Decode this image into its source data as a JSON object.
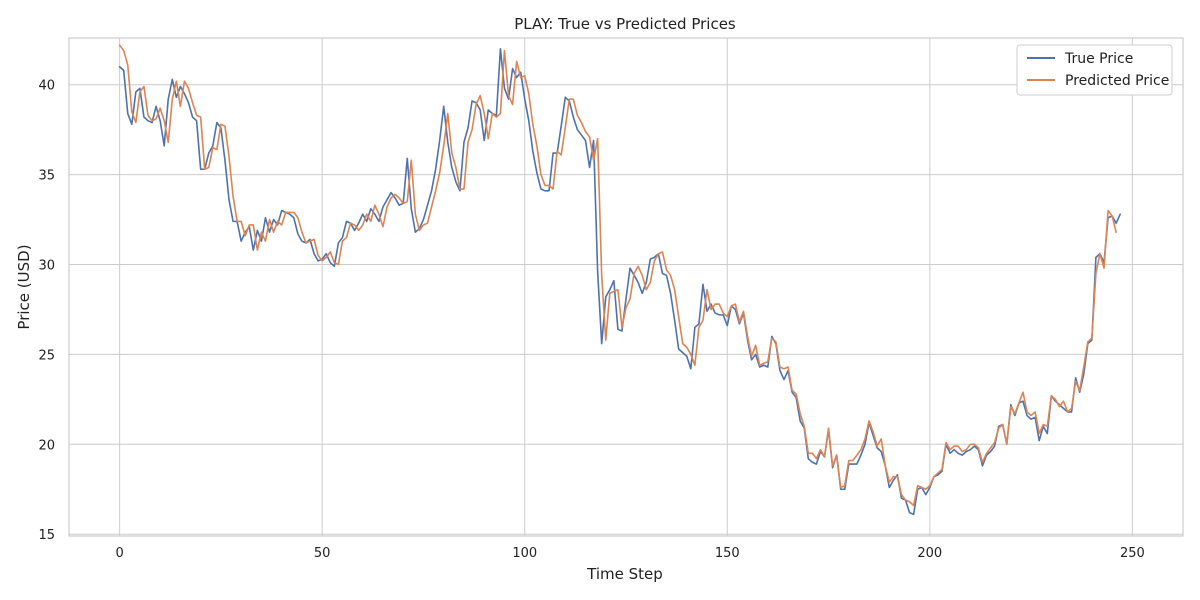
{
  "chart_data": {
    "type": "line",
    "title": "PLAY: True vs Predicted Prices",
    "xlabel": "Time Step",
    "ylabel": "Price (USD)",
    "xlim": [
      -12.5,
      262.5
    ],
    "ylim": [
      14.9,
      42.6
    ],
    "xticks": [
      0,
      50,
      100,
      150,
      200,
      250
    ],
    "yticks": [
      15,
      20,
      25,
      30,
      35,
      40
    ],
    "grid": true,
    "legend_position": "top-right",
    "series": [
      {
        "name": "True Price",
        "color": "#4c72b0",
        "values": [
          41.0,
          40.8,
          38.4,
          37.8,
          39.6,
          39.8,
          38.2,
          38.0,
          37.9,
          38.8,
          38.0,
          36.6,
          39.2,
          40.3,
          39.3,
          39.9,
          39.5,
          39.0,
          38.2,
          38.0,
          35.3,
          35.3,
          36.2,
          36.6,
          37.9,
          37.6,
          35.8,
          33.6,
          32.4,
          32.4,
          31.3,
          31.8,
          32.1,
          30.8,
          31.9,
          31.3,
          32.6,
          31.8,
          32.5,
          32.2,
          33.0,
          32.9,
          32.8,
          32.6,
          31.7,
          31.3,
          31.2,
          31.4,
          30.6,
          30.2,
          30.3,
          30.6,
          30.1,
          29.9,
          31.2,
          31.5,
          32.4,
          32.3,
          31.9,
          32.3,
          32.8,
          32.4,
          33.1,
          32.8,
          32.4,
          33.2,
          33.6,
          34.0,
          33.7,
          33.3,
          33.4,
          35.9,
          33.1,
          31.8,
          32.0,
          32.5,
          33.3,
          34.1,
          35.3,
          36.9,
          38.8,
          36.8,
          35.4,
          34.6,
          34.1,
          36.8,
          37.6,
          39.1,
          39.0,
          38.6,
          36.9,
          38.6,
          38.4,
          38.3,
          42.0,
          39.8,
          39.2,
          40.9,
          40.4,
          40.7,
          39.2,
          38.0,
          36.3,
          35.1,
          34.2,
          34.1,
          34.1,
          36.2,
          36.2,
          37.7,
          39.3,
          39.1,
          38.2,
          37.5,
          37.2,
          36.9,
          35.4,
          36.9,
          29.6,
          25.6,
          28.2,
          28.6,
          29.1,
          26.4,
          26.3,
          28.1,
          29.8,
          29.4,
          29.0,
          28.4,
          29.0,
          30.3,
          30.4,
          30.6,
          29.5,
          29.4,
          28.4,
          26.9,
          25.3,
          25.1,
          24.9,
          24.2,
          26.5,
          26.7,
          28.9,
          27.4,
          27.8,
          27.3,
          27.2,
          27.2,
          26.6,
          27.7,
          27.5,
          26.7,
          27.3,
          25.8,
          24.7,
          25.0,
          24.3,
          24.4,
          24.3,
          26.0,
          25.6,
          24.1,
          23.6,
          24.1,
          22.9,
          22.6,
          21.3,
          20.9,
          19.2,
          19.0,
          18.9,
          19.6,
          19.3,
          20.8,
          18.7,
          19.4,
          17.5,
          17.5,
          18.9,
          18.9,
          18.9,
          19.4,
          20.0,
          21.2,
          20.5,
          19.8,
          19.6,
          18.8,
          17.6,
          18.0,
          18.3,
          17.0,
          16.9,
          16.2,
          16.1,
          17.5,
          17.6,
          17.2,
          17.6,
          18.2,
          18.3,
          18.5,
          20.0,
          19.5,
          19.7,
          19.5,
          19.4,
          19.6,
          19.7,
          19.9,
          19.7,
          18.8,
          19.4,
          19.6,
          19.9,
          21.0,
          21.1,
          20.0,
          22.2,
          21.6,
          22.3,
          22.4,
          21.6,
          21.4,
          21.5,
          20.2,
          21.0,
          20.6,
          22.7,
          22.4,
          22.2,
          22.0,
          21.8,
          21.8,
          23.7,
          22.9,
          23.9,
          25.6,
          25.8,
          30.4,
          30.6,
          30.1,
          32.6,
          32.7,
          32.3,
          32.8
        ]
      },
      {
        "name": "Predicted Price",
        "color": "#dd8452",
        "values": [
          42.2,
          41.9,
          41.1,
          38.5,
          37.9,
          39.6,
          39.9,
          38.3,
          38.0,
          38.1,
          38.7,
          38.0,
          36.8,
          39.2,
          40.2,
          38.8,
          40.2,
          39.8,
          39.0,
          38.3,
          38.2,
          35.3,
          35.4,
          36.5,
          36.4,
          37.8,
          37.7,
          36.0,
          33.8,
          32.4,
          32.4,
          31.6,
          32.2,
          32.2,
          30.8,
          31.8,
          31.3,
          32.5,
          31.8,
          32.4,
          32.2,
          32.9,
          32.9,
          32.9,
          32.6,
          31.8,
          31.2,
          31.3,
          31.4,
          30.5,
          30.2,
          30.4,
          30.7,
          30.1,
          30.0,
          31.3,
          31.5,
          32.3,
          32.2,
          31.9,
          32.2,
          32.8,
          32.4,
          33.3,
          32.8,
          32.1,
          33.2,
          33.7,
          33.9,
          33.7,
          33.4,
          33.5,
          35.8,
          32.8,
          31.9,
          32.2,
          32.3,
          33.2,
          34.1,
          35.1,
          36.6,
          38.4,
          36.2,
          35.4,
          34.2,
          34.2,
          36.8,
          37.5,
          38.9,
          39.4,
          38.4,
          37.0,
          38.4,
          38.2,
          38.4,
          41.9,
          39.4,
          38.9,
          41.3,
          40.4,
          40.5,
          39.5,
          37.8,
          36.6,
          35.0,
          34.4,
          34.4,
          34.2,
          36.3,
          36.1,
          37.6,
          39.2,
          39.2,
          38.3,
          37.9,
          37.4,
          37.1,
          35.8,
          37.0,
          29.4,
          25.8,
          28.4,
          28.5,
          28.6,
          26.5,
          27.6,
          28.1,
          29.5,
          29.9,
          29.4,
          28.6,
          29.0,
          30.2,
          30.6,
          30.7,
          29.7,
          29.4,
          28.6,
          27.1,
          25.6,
          25.4,
          25.0,
          24.4,
          26.5,
          26.9,
          28.6,
          27.5,
          27.8,
          27.8,
          27.3,
          27.1,
          27.7,
          27.8,
          26.8,
          27.4,
          26.0,
          24.9,
          25.5,
          24.4,
          24.5,
          24.6,
          25.9,
          25.7,
          24.3,
          24.2,
          24.3,
          23.0,
          22.8,
          21.7,
          21.0,
          19.5,
          19.5,
          19.2,
          19.7,
          19.3,
          20.9,
          18.8,
          19.4,
          17.6,
          17.7,
          19.1,
          19.1,
          19.4,
          19.7,
          20.3,
          21.3,
          20.7,
          19.9,
          20.3,
          18.8,
          17.9,
          18.2,
          18.2,
          17.2,
          16.9,
          16.8,
          16.6,
          17.7,
          17.6,
          17.5,
          17.7,
          18.2,
          18.4,
          18.6,
          20.1,
          19.7,
          19.9,
          19.9,
          19.6,
          19.7,
          20.0,
          20.0,
          19.8,
          19.0,
          19.5,
          19.8,
          20.1,
          20.9,
          21.1,
          20.0,
          22.1,
          21.7,
          22.3,
          22.9,
          21.8,
          21.6,
          21.8,
          20.6,
          21.1,
          21.0,
          22.7,
          22.5,
          22.1,
          22.4,
          21.8,
          22.0,
          23.5,
          23.0,
          24.3,
          25.7,
          25.9,
          29.5,
          30.6,
          29.8,
          33.0,
          32.7,
          31.8
        ]
      }
    ]
  }
}
